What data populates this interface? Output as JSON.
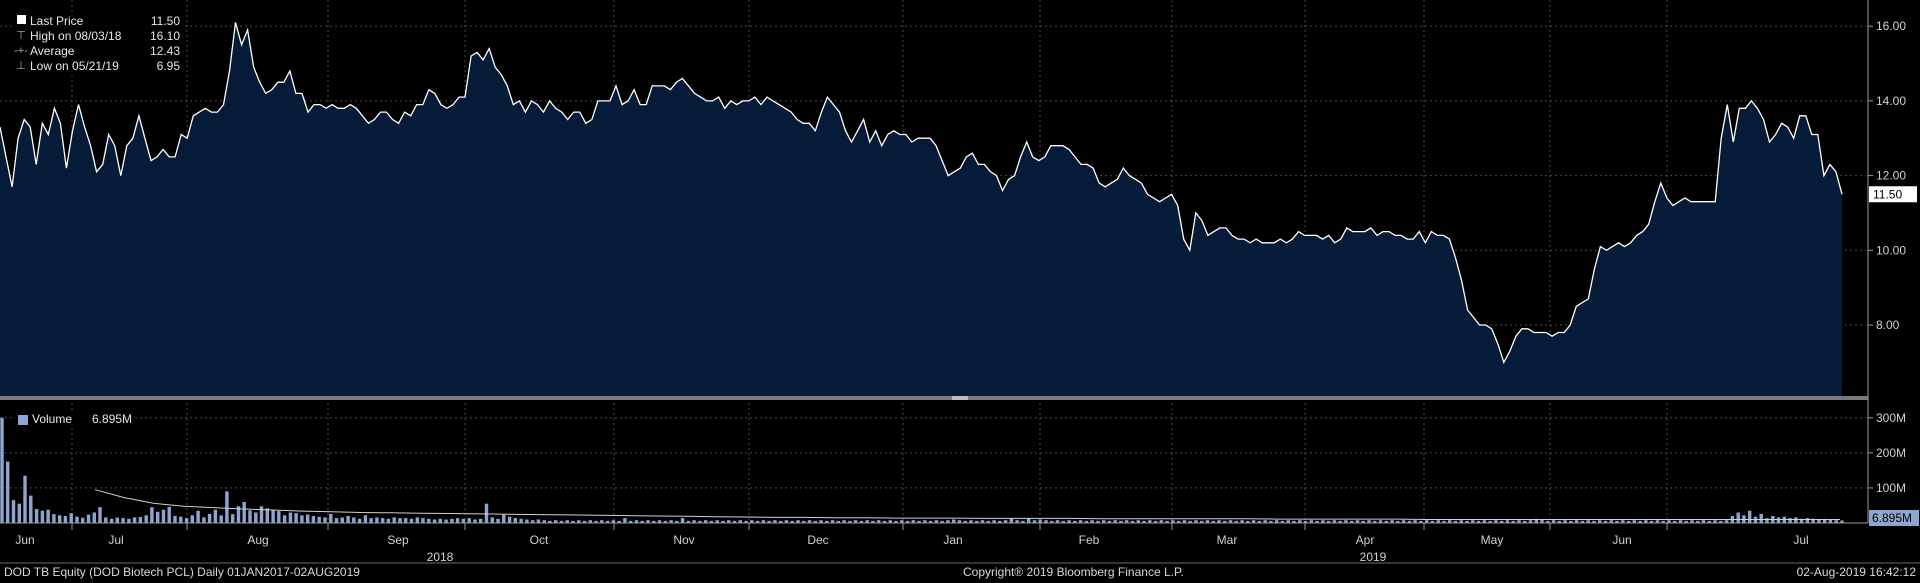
{
  "chart_data": {
    "type": "area",
    "price_panel": {
      "legend": [
        {
          "label": "Last Price",
          "value": "11.50",
          "symbol": "white-square"
        },
        {
          "label": "High on 08/03/18",
          "value": "16.10",
          "symbol": "high-marker"
        },
        {
          "label": "Average",
          "value": "12.43",
          "symbol": "average-marker"
        },
        {
          "label": "Low on 05/21/19",
          "value": "6.95",
          "symbol": "low-marker"
        }
      ],
      "y_ticks": [
        "16.00",
        "14.00",
        "12.00",
        "10.00",
        "8.00"
      ],
      "y_tick_values": [
        16,
        14,
        12,
        10,
        8
      ],
      "ylim": [
        6.1,
        16.7
      ],
      "last_price_label": "11.50",
      "line_color": "#ffffff",
      "fill_color": "#061b38",
      "series": [
        13.3,
        12.5,
        11.7,
        13.0,
        13.5,
        13.3,
        12.3,
        13.4,
        13.1,
        13.8,
        13.4,
        12.2,
        13.2,
        13.9,
        13.3,
        12.8,
        12.1,
        12.3,
        13.1,
        12.8,
        12.0,
        12.8,
        13.0,
        13.6,
        13.0,
        12.4,
        12.5,
        12.7,
        12.5,
        12.5,
        13.1,
        13.0,
        13.6,
        13.7,
        13.8,
        13.7,
        13.7,
        13.9,
        14.8,
        16.1,
        15.5,
        15.9,
        14.9,
        14.5,
        14.2,
        14.3,
        14.5,
        14.5,
        14.8,
        14.2,
        14.2,
        13.7,
        13.9,
        13.9,
        13.8,
        13.9,
        13.8,
        13.8,
        13.9,
        13.8,
        13.6,
        13.4,
        13.5,
        13.7,
        13.7,
        13.5,
        13.4,
        13.7,
        13.6,
        13.9,
        13.9,
        14.3,
        14.2,
        13.9,
        13.8,
        13.9,
        14.1,
        14.1,
        15.2,
        15.3,
        15.1,
        15.4,
        14.9,
        14.7,
        14.4,
        13.9,
        14.0,
        13.7,
        14.0,
        13.9,
        13.7,
        14.0,
        13.8,
        13.7,
        13.5,
        13.7,
        13.7,
        13.4,
        13.5,
        14.0,
        14.0,
        14.0,
        14.4,
        13.9,
        14.0,
        14.3,
        13.9,
        13.9,
        14.4,
        14.4,
        14.4,
        14.3,
        14.5,
        14.6,
        14.4,
        14.2,
        14.1,
        14.0,
        14.0,
        14.1,
        13.8,
        14.0,
        13.9,
        14.0,
        14.0,
        14.1,
        13.9,
        14.1,
        14.0,
        13.9,
        13.8,
        13.7,
        13.5,
        13.4,
        13.4,
        13.2,
        13.7,
        14.1,
        13.9,
        13.7,
        13.2,
        12.9,
        13.2,
        13.5,
        12.9,
        13.2,
        12.8,
        13.1,
        13.2,
        13.1,
        13.1,
        12.9,
        13.0,
        13.0,
        13.0,
        12.8,
        12.4,
        12.0,
        12.1,
        12.2,
        12.5,
        12.6,
        12.3,
        12.3,
        12.1,
        12.0,
        11.6,
        11.9,
        12.0,
        12.5,
        12.9,
        12.5,
        12.4,
        12.5,
        12.8,
        12.8,
        12.8,
        12.7,
        12.5,
        12.3,
        12.3,
        12.2,
        11.8,
        11.7,
        11.8,
        11.9,
        12.2,
        12.0,
        11.9,
        11.8,
        11.5,
        11.4,
        11.3,
        11.4,
        11.5,
        11.2,
        10.3,
        10.0,
        11.0,
        10.8,
        10.4,
        10.5,
        10.6,
        10.6,
        10.4,
        10.3,
        10.3,
        10.2,
        10.3,
        10.2,
        10.2,
        10.2,
        10.3,
        10.2,
        10.3,
        10.5,
        10.4,
        10.4,
        10.4,
        10.3,
        10.4,
        10.2,
        10.3,
        10.6,
        10.5,
        10.5,
        10.5,
        10.6,
        10.4,
        10.5,
        10.5,
        10.4,
        10.4,
        10.3,
        10.3,
        10.5,
        10.2,
        10.5,
        10.4,
        10.4,
        10.3,
        9.8,
        9.2,
        8.4,
        8.2,
        8.0,
        8.0,
        7.9,
        7.5,
        7.0,
        7.3,
        7.7,
        7.9,
        7.9,
        7.8,
        7.8,
        7.8,
        7.7,
        7.8,
        7.8,
        8.0,
        8.5,
        8.6,
        8.7,
        9.5,
        10.1,
        10.0,
        10.1,
        10.2,
        10.1,
        10.2,
        10.4,
        10.5,
        10.7,
        11.3,
        11.8,
        11.4,
        11.2,
        11.3,
        11.4,
        11.3,
        11.3,
        11.3,
        11.3,
        11.3,
        13.0,
        13.9,
        12.9,
        13.8,
        13.8,
        14.0,
        13.8,
        13.5,
        12.9,
        13.1,
        13.4,
        13.3,
        13.0,
        13.6,
        13.6,
        13.1,
        13.1,
        12.0,
        12.3,
        12.1,
        11.5
      ]
    },
    "volume_panel": {
      "legend": [
        {
          "label": "Volume",
          "value": "6.895M",
          "symbol": "volume-swatch"
        }
      ],
      "y_ticks": [
        "300M",
        "200M",
        "100M"
      ],
      "y_tick_values": [
        300,
        200,
        100
      ],
      "ylim": [
        0,
        345
      ],
      "last_volume_label": "6.895M",
      "bar_color": "#8ea6cf",
      "series": [
        300,
        175,
        65,
        55,
        135,
        78,
        40,
        35,
        38,
        25,
        22,
        20,
        28,
        18,
        15,
        24,
        30,
        45,
        16,
        12,
        15,
        14,
        12,
        16,
        17,
        22,
        45,
        32,
        38,
        46,
        20,
        18,
        14,
        22,
        35,
        16,
        26,
        38,
        22,
        90,
        25,
        48,
        60,
        36,
        30,
        48,
        42,
        38,
        34,
        22,
        30,
        28,
        22,
        24,
        20,
        18,
        16,
        26,
        14,
        16,
        20,
        16,
        12,
        22,
        14,
        16,
        14,
        12,
        16,
        14,
        14,
        12,
        16,
        14,
        12,
        10,
        12,
        10,
        12,
        14,
        12,
        14,
        10,
        12,
        55,
        16,
        12,
        24,
        18,
        14,
        12,
        10,
        8,
        10,
        8,
        6,
        8,
        6,
        8,
        6,
        8,
        6,
        8,
        6,
        8,
        6,
        8,
        6,
        14,
        6,
        8,
        6,
        8,
        6,
        8,
        6,
        8,
        6,
        14,
        6,
        8,
        6,
        8,
        6,
        8,
        6,
        8,
        6,
        8,
        6,
        8,
        6,
        8,
        6,
        8,
        6,
        8,
        6,
        8,
        6,
        8,
        6,
        8,
        6,
        8,
        6,
        8,
        6,
        8,
        6,
        8,
        6,
        8,
        6,
        8,
        6,
        8,
        6,
        8,
        6,
        8,
        6,
        8,
        6,
        8,
        10,
        8,
        6,
        8,
        6,
        8,
        6,
        8,
        6,
        8,
        12,
        8,
        6,
        14,
        8,
        10,
        8,
        6,
        8,
        6,
        8,
        6,
        8,
        6,
        8,
        6,
        8,
        6,
        8,
        6,
        8,
        6,
        8,
        6,
        8,
        6,
        8,
        6,
        8,
        6,
        8,
        6,
        8,
        6,
        8,
        6,
        8,
        6,
        8,
        6,
        8,
        6,
        8,
        6,
        8,
        6,
        8,
        6,
        8,
        6,
        8,
        6,
        8,
        6,
        8,
        6,
        8,
        6,
        8,
        6,
        8,
        6,
        8,
        6,
        8,
        6,
        8,
        6,
        8,
        6,
        8,
        6,
        8,
        6,
        8,
        6,
        8,
        6,
        8,
        6,
        8,
        6,
        8,
        6,
        8,
        6,
        8,
        6,
        8,
        6,
        8,
        12,
        10,
        6,
        8,
        6,
        8,
        6,
        8,
        6,
        8,
        6,
        8,
        6,
        8,
        6,
        8,
        6,
        8,
        6,
        8,
        6,
        8,
        6,
        8,
        6,
        8,
        6,
        8,
        6,
        8,
        6,
        8,
        6,
        8,
        20,
        30,
        22,
        35,
        18,
        26,
        14,
        20,
        16,
        18,
        14,
        16,
        12,
        14,
        12,
        10,
        12,
        10,
        8,
        7
      ],
      "average_line": [
        95,
        72,
        56,
        48,
        44,
        40,
        37,
        34,
        32,
        30,
        29,
        28,
        27,
        26,
        25,
        24,
        23,
        22,
        21,
        20,
        19,
        18,
        17,
        16,
        16,
        15,
        15,
        14,
        14,
        14,
        13,
        13,
        13,
        13,
        12,
        12,
        12,
        12,
        12,
        12,
        11,
        11,
        11,
        11,
        11,
        10,
        10,
        10,
        10,
        10,
        10,
        10,
        10,
        10,
        10,
        10,
        10,
        10,
        10,
        10
      ]
    },
    "x_ticks": [
      "Jun",
      "Jul",
      "Aug",
      "Sep",
      "Oct",
      "Nov",
      "Dec",
      "Jan",
      "Feb",
      "Mar",
      "Apr",
      "May",
      "Jun",
      "Jul"
    ],
    "x_years": [
      "2018",
      "2019"
    ],
    "grid": true
  },
  "footer": {
    "left": "DOD TB Equity (DOD Biotech PCL)  Daily 01JAN2017-02AUG2019",
    "center": "Copyright® 2019 Bloomberg Finance L.P.",
    "right": "02-Aug-2019 16:42:12"
  }
}
